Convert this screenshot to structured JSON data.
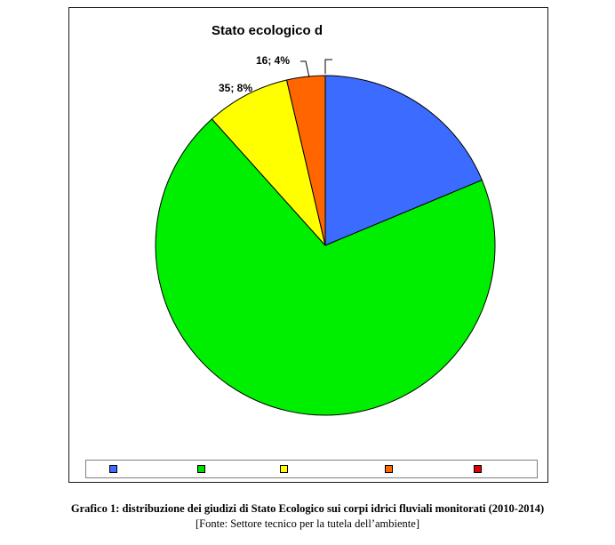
{
  "chart_data": {
    "type": "pie",
    "title": "Stato ecologico d",
    "start_angle_deg": 0,
    "direction": "clockwise",
    "slices": [
      {
        "color": "#3c6cff",
        "value": 82,
        "label": ""
      },
      {
        "color": "#00ee00",
        "value": 305,
        "label": ""
      },
      {
        "color": "#ffff00",
        "value": 35,
        "label": "35; 8%"
      },
      {
        "color": "#ff6600",
        "value": 16,
        "label": "16; 4%"
      },
      {
        "color": "#cc0000",
        "value": 0,
        "label": ""
      }
    ],
    "legend": {
      "placement": "bottom",
      "colors": [
        "#3c6cff",
        "#00dd00",
        "#ffff00",
        "#ff6600",
        "#dd0000"
      ]
    }
  },
  "caption": {
    "title": "Grafico 1: distribuzione dei giudizi di Stato Ecologico sui corpi idrici fluviali monitorati (2010-2014)",
    "source": "[Fonte: Settore tecnico per la tutela dell’ambiente]"
  }
}
